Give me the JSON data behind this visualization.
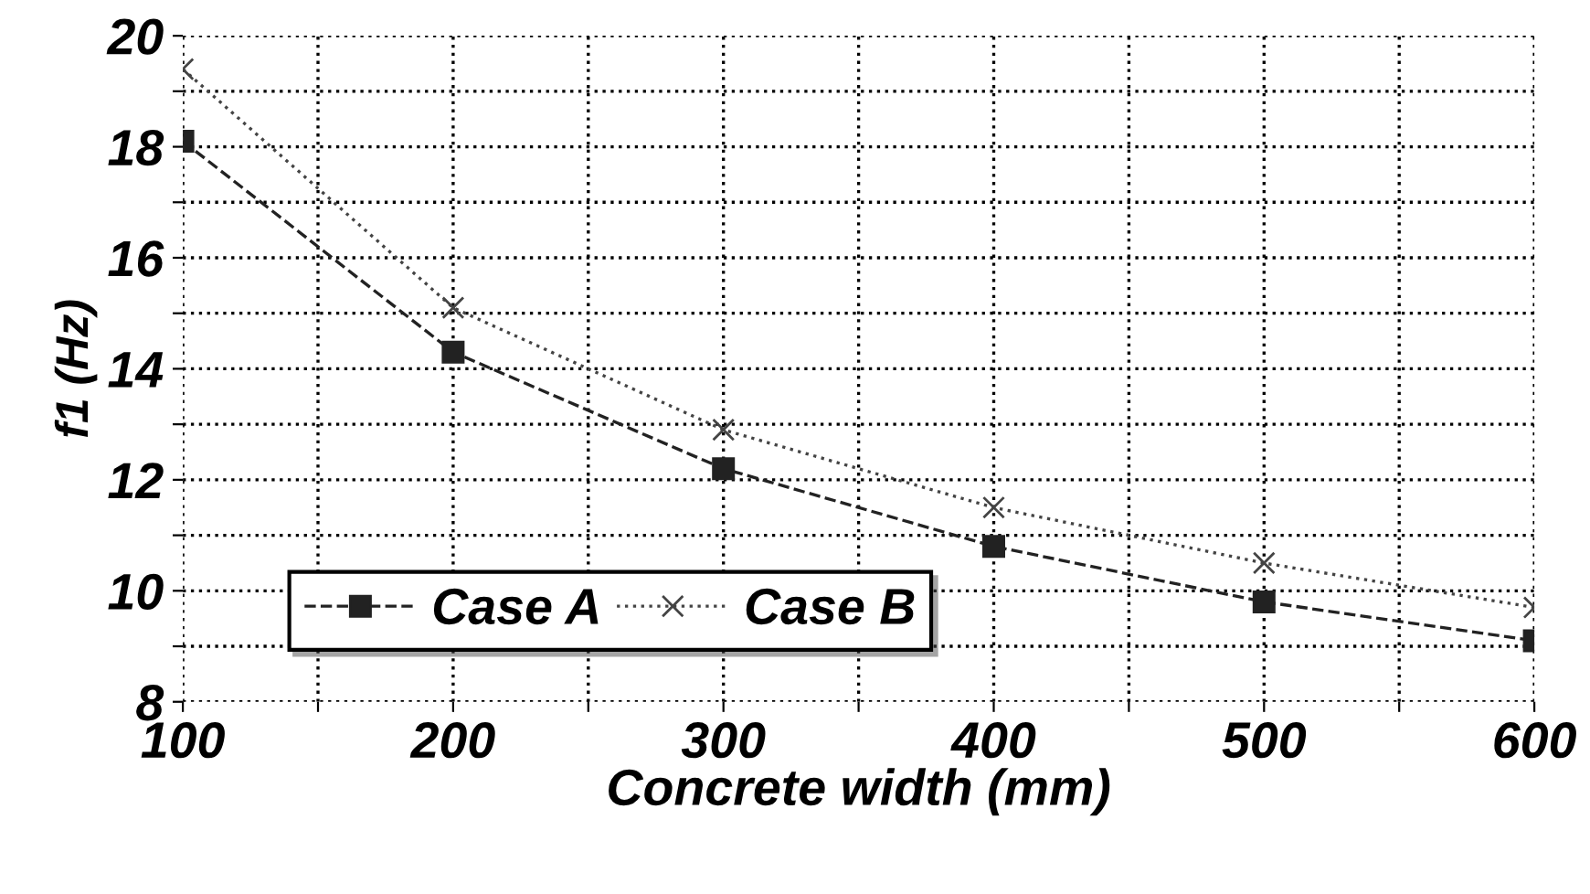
{
  "chart_data": {
    "type": "line",
    "xlabel": "Concrete width (mm)",
    "ylabel": "f1 (Hz)",
    "x": [
      100,
      200,
      300,
      400,
      500,
      600
    ],
    "series": [
      {
        "name": "Case A",
        "color": "#222222",
        "marker": "square",
        "line_style": "dashed",
        "values": [
          18.1,
          14.3,
          12.2,
          10.8,
          9.8,
          9.1
        ]
      },
      {
        "name": "Case B",
        "color": "#444444",
        "marker": "cross",
        "line_style": "dotted",
        "values": [
          19.4,
          15.1,
          12.9,
          11.5,
          10.5,
          9.7
        ]
      }
    ],
    "xlim": [
      100,
      600
    ],
    "ylim": [
      8,
      20
    ],
    "xticks": [
      100,
      {
        "value": 150,
        "label": null
      },
      200,
      {
        "value": 250,
        "label": null
      },
      300,
      {
        "value": 350,
        "label": null
      },
      400,
      {
        "value": 450,
        "label": null
      },
      500,
      {
        "value": 550,
        "label": null
      },
      600
    ],
    "yticks": [
      8,
      {
        "value": 9,
        "label": null
      },
      10,
      {
        "value": 11,
        "label": null
      },
      12,
      {
        "value": 13,
        "label": null
      },
      14,
      {
        "value": 15,
        "label": null
      },
      16,
      {
        "value": 17,
        "label": null
      },
      18,
      {
        "value": 19,
        "label": null
      },
      20
    ],
    "grid": true,
    "legend": "bottom left"
  }
}
